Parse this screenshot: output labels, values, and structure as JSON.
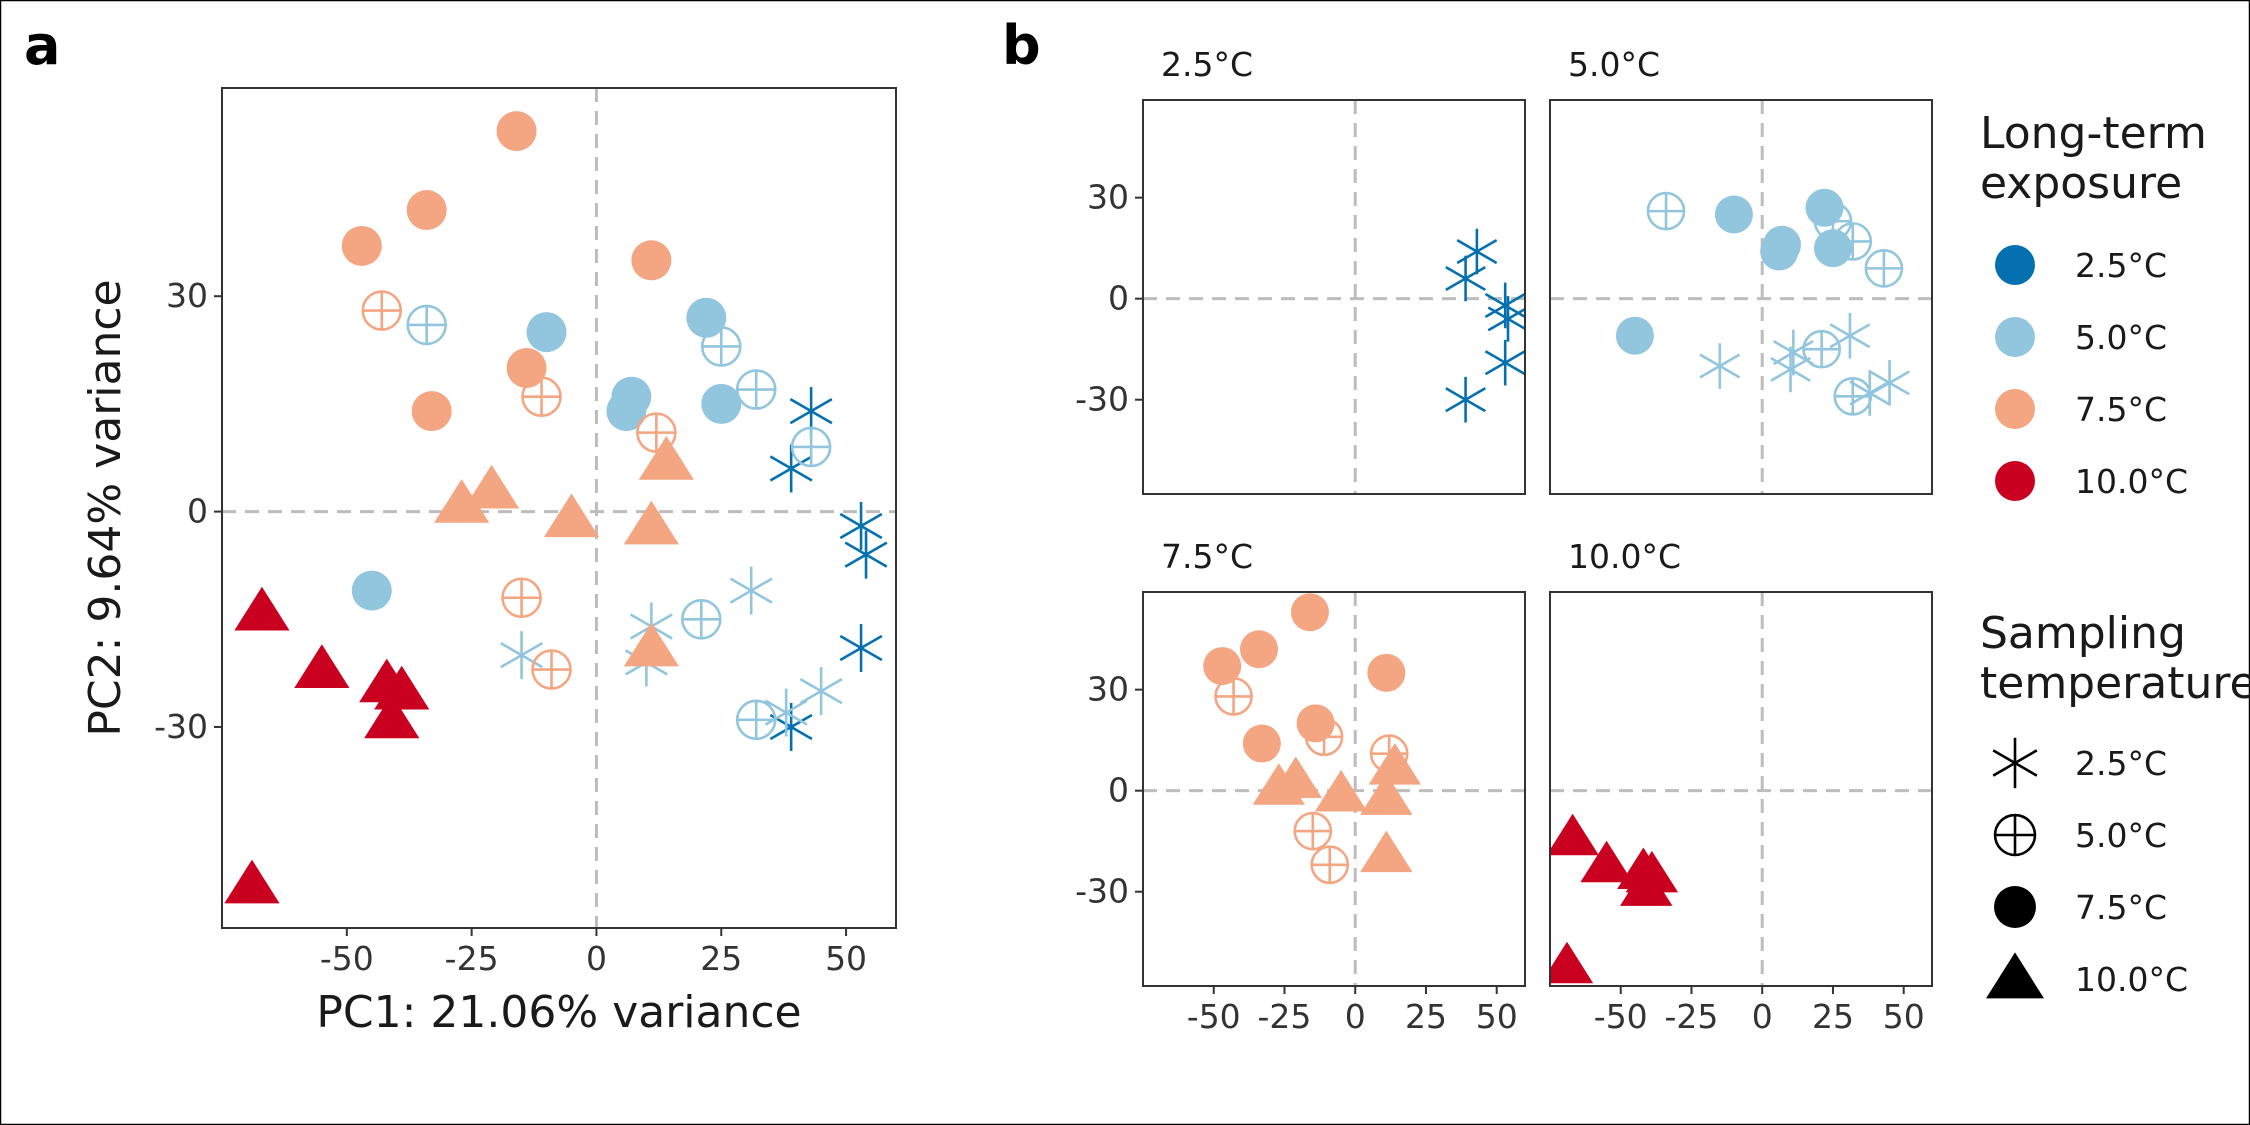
{
  "chart_data": {
    "type": "scatter",
    "colors": {
      "2.5": "#0570b0",
      "5.0": "#92c5de",
      "7.5": "#f4a582",
      "10.0": "#ca0020"
    },
    "panel_a": {
      "label": "a",
      "xlabel": "PC1: 21.06% variance",
      "ylabel": "PC2: 9.64% variance",
      "xlim": [
        -75,
        60
      ],
      "ylim": [
        -58,
        59
      ],
      "x_ticks": [
        -50,
        -25,
        0,
        25,
        50
      ],
      "y_ticks": [
        -30,
        0,
        30
      ],
      "x_tick_labels": [
        "-50",
        "-25",
        "0",
        "25",
        "50"
      ],
      "y_tick_labels": [
        "-30",
        "0",
        "30"
      ]
    },
    "panel_b": {
      "label": "b",
      "xlim": [
        -75,
        60
      ],
      "ylim": [
        -58,
        59
      ],
      "x_ticks": [
        -50,
        -25,
        0,
        25,
        50
      ],
      "y_ticks": [
        -30,
        0,
        30
      ],
      "x_tick_labels": [
        "-50",
        "-25",
        "0",
        "25",
        "50"
      ],
      "y_tick_labels": [
        "-30",
        "0",
        "30"
      ],
      "facet_labels": [
        "2.5°C",
        "5.0°C",
        "7.5°C",
        "10.0°C"
      ]
    },
    "legend": {
      "color_title": [
        "Long-term",
        "exposure"
      ],
      "color_items": [
        {
          "label": "2.5°C",
          "exposure": "2.5"
        },
        {
          "label": "5.0°C",
          "exposure": "5.0"
        },
        {
          "label": "7.5°C",
          "exposure": "7.5"
        },
        {
          "label": "10.0°C",
          "exposure": "10.0"
        }
      ],
      "shape_title": [
        "Sampling",
        "temperature"
      ],
      "shape_items": [
        {
          "label": "2.5°C",
          "shape": "asterisk"
        },
        {
          "label": "5.0°C",
          "shape": "circle-plus"
        },
        {
          "label": "7.5°C",
          "shape": "circle"
        },
        {
          "label": "10.0°C",
          "shape": "triangle"
        }
      ]
    },
    "points": [
      {
        "exposure": "2.5",
        "sampling": "2.5",
        "x": 43,
        "y": 14
      },
      {
        "exposure": "2.5",
        "sampling": "2.5",
        "x": 39,
        "y": 6
      },
      {
        "exposure": "2.5",
        "sampling": "2.5",
        "x": 53,
        "y": -2
      },
      {
        "exposure": "2.5",
        "sampling": "2.5",
        "x": 54,
        "y": -6
      },
      {
        "exposure": "2.5",
        "sampling": "2.5",
        "x": 53,
        "y": -19
      },
      {
        "exposure": "2.5",
        "sampling": "2.5",
        "x": 39,
        "y": -30
      },
      {
        "exposure": "5.0",
        "sampling": "5.0",
        "x": -34,
        "y": 26
      },
      {
        "exposure": "5.0",
        "sampling": "7.5",
        "x": -10,
        "y": 25
      },
      {
        "exposure": "5.0",
        "sampling": "7.5",
        "x": 22,
        "y": 27
      },
      {
        "exposure": "5.0",
        "sampling": "5.0",
        "x": 25,
        "y": 23
      },
      {
        "exposure": "5.0",
        "sampling": "5.0",
        "x": 32,
        "y": 17
      },
      {
        "exposure": "5.0",
        "sampling": "7.5",
        "x": 7,
        "y": 16
      },
      {
        "exposure": "5.0",
        "sampling": "7.5",
        "x": 6,
        "y": 14
      },
      {
        "exposure": "5.0",
        "sampling": "7.5",
        "x": 25,
        "y": 15
      },
      {
        "exposure": "5.0",
        "sampling": "5.0",
        "x": 43,
        "y": 9
      },
      {
        "exposure": "5.0",
        "sampling": "7.5",
        "x": -45,
        "y": -11
      },
      {
        "exposure": "5.0",
        "sampling": "2.5",
        "x": -15,
        "y": -20
      },
      {
        "exposure": "5.0",
        "sampling": "2.5",
        "x": 11,
        "y": -16
      },
      {
        "exposure": "5.0",
        "sampling": "2.5",
        "x": 10,
        "y": -21
      },
      {
        "exposure": "5.0",
        "sampling": "5.0",
        "x": 21,
        "y": -15
      },
      {
        "exposure": "5.0",
        "sampling": "2.5",
        "x": 31,
        "y": -11
      },
      {
        "exposure": "5.0",
        "sampling": "5.0",
        "x": 32,
        "y": -29
      },
      {
        "exposure": "5.0",
        "sampling": "2.5",
        "x": 38,
        "y": -28
      },
      {
        "exposure": "5.0",
        "sampling": "2.5",
        "x": 45,
        "y": -25
      },
      {
        "exposure": "7.5",
        "sampling": "7.5",
        "x": -16,
        "y": 53
      },
      {
        "exposure": "7.5",
        "sampling": "7.5",
        "x": -34,
        "y": 42
      },
      {
        "exposure": "7.5",
        "sampling": "7.5",
        "x": -47,
        "y": 37
      },
      {
        "exposure": "7.5",
        "sampling": "7.5",
        "x": 11,
        "y": 35
      },
      {
        "exposure": "7.5",
        "sampling": "5.0",
        "x": -43,
        "y": 28
      },
      {
        "exposure": "7.5",
        "sampling": "7.5",
        "x": -14,
        "y": 20
      },
      {
        "exposure": "7.5",
        "sampling": "5.0",
        "x": -11,
        "y": 16
      },
      {
        "exposure": "7.5",
        "sampling": "7.5",
        "x": -33,
        "y": 14
      },
      {
        "exposure": "7.5",
        "sampling": "5.0",
        "x": 12,
        "y": 11
      },
      {
        "exposure": "7.5",
        "sampling": "10.0",
        "x": 14,
        "y": 7
      },
      {
        "exposure": "7.5",
        "sampling": "10.0",
        "x": -21,
        "y": 3
      },
      {
        "exposure": "7.5",
        "sampling": "10.0",
        "x": -27,
        "y": 1
      },
      {
        "exposure": "7.5",
        "sampling": "10.0",
        "x": -5,
        "y": -1
      },
      {
        "exposure": "7.5",
        "sampling": "10.0",
        "x": 11,
        "y": -2
      },
      {
        "exposure": "7.5",
        "sampling": "5.0",
        "x": -15,
        "y": -12
      },
      {
        "exposure": "7.5",
        "sampling": "5.0",
        "x": -9,
        "y": -22
      },
      {
        "exposure": "7.5",
        "sampling": "10.0",
        "x": 11,
        "y": -19
      },
      {
        "exposure": "10.0",
        "sampling": "10.0",
        "x": -67,
        "y": -14
      },
      {
        "exposure": "10.0",
        "sampling": "10.0",
        "x": -55,
        "y": -22
      },
      {
        "exposure": "10.0",
        "sampling": "10.0",
        "x": -42,
        "y": -24
      },
      {
        "exposure": "10.0",
        "sampling": "10.0",
        "x": -39,
        "y": -25
      },
      {
        "exposure": "10.0",
        "sampling": "10.0",
        "x": -41,
        "y": -29
      },
      {
        "exposure": "10.0",
        "sampling": "10.0",
        "x": -69,
        "y": -52
      }
    ]
  }
}
